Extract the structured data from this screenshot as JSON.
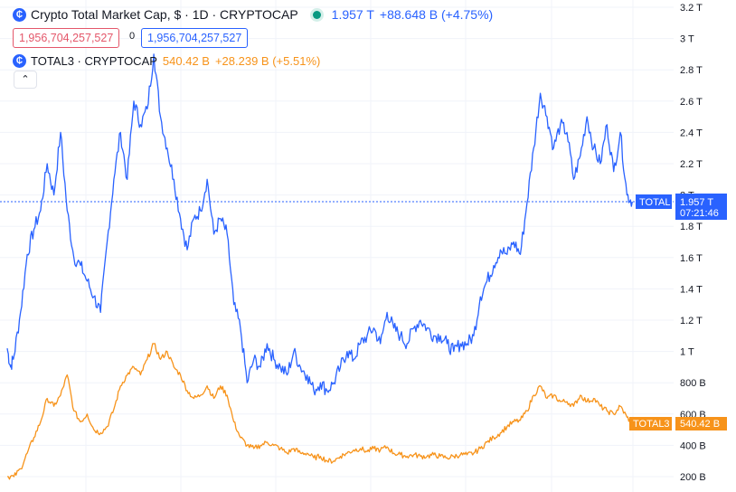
{
  "legend": {
    "main": {
      "logo": "crypto-logo-icon",
      "title": "Crypto Total Market Cap, $ · 1D · CRYPTOCAP",
      "value": "1.957 T",
      "change": "+88.648 B (+4.75%)"
    },
    "secondary": {
      "logo": "crypto-logo-icon",
      "title": "TOTAL3 · CRYPTOCAP",
      "value": "540.42 B",
      "change": "+28.239 B (+5.51%)"
    },
    "sell_value": "1,956,704,257,527",
    "spread": "0",
    "buy_value": "1,956,704,257,527",
    "collapse_icon": "chevron-up-icon"
  },
  "price_tags": {
    "main_label": "TOTAL",
    "main_value": "1.957 T",
    "main_countdown": "07:21:46",
    "secondary_label": "TOTAL3",
    "secondary_value": "540.42 B"
  },
  "colors": {
    "main": "#2962ff",
    "secondary": "#f7931a",
    "grid": "#f0f3fa"
  },
  "chart_data": {
    "type": "line",
    "title": "Crypto Total Market Cap, $ · 1D · CRYPTOCAP",
    "y_axis": {
      "unit": "T",
      "min": 0.1,
      "max": 3.2,
      "ticks": [
        {
          "value": 3.2,
          "label": "3.2 T"
        },
        {
          "value": 3.0,
          "label": "3 T"
        },
        {
          "value": 2.8,
          "label": "2.8 T"
        },
        {
          "value": 2.6,
          "label": "2.6 T"
        },
        {
          "value": 2.4,
          "label": "2.4 T"
        },
        {
          "value": 2.2,
          "label": "2.2 T"
        },
        {
          "value": 2.0,
          "label": "2 T"
        },
        {
          "value": 1.8,
          "label": "1.8 T"
        },
        {
          "value": 1.6,
          "label": "1.6 T"
        },
        {
          "value": 1.4,
          "label": "1.4 T"
        },
        {
          "value": 1.2,
          "label": "1.2 T"
        },
        {
          "value": 1.0,
          "label": "1 T"
        },
        {
          "value": 0.8,
          "label": "800 B"
        },
        {
          "value": 0.6,
          "label": "600 B"
        },
        {
          "value": 0.4,
          "label": "400 B"
        },
        {
          "value": 0.2,
          "label": "200 B"
        }
      ]
    },
    "x_range": [
      0,
      100
    ],
    "current_value": 1.957,
    "series": [
      {
        "name": "TOTAL",
        "color": "#2962ff",
        "points": [
          [
            0,
            1.02
          ],
          [
            0.5,
            0.9
          ],
          [
            1,
            0.97
          ],
          [
            2,
            1.25
          ],
          [
            3,
            1.62
          ],
          [
            4,
            1.78
          ],
          [
            5,
            1.9
          ],
          [
            6,
            2.2
          ],
          [
            7,
            2.0
          ],
          [
            8,
            2.4
          ],
          [
            9,
            1.9
          ],
          [
            10,
            1.6
          ],
          [
            11,
            1.55
          ],
          [
            12,
            1.45
          ],
          [
            13,
            1.35
          ],
          [
            14,
            1.25
          ],
          [
            15,
            1.7
          ],
          [
            16,
            2.1
          ],
          [
            17,
            2.4
          ],
          [
            18,
            2.1
          ],
          [
            19,
            2.6
          ],
          [
            20,
            2.45
          ],
          [
            21,
            2.55
          ],
          [
            22,
            2.9
          ],
          [
            23,
            2.5
          ],
          [
            24,
            2.3
          ],
          [
            25,
            2.1
          ],
          [
            26,
            1.85
          ],
          [
            27,
            1.65
          ],
          [
            28,
            1.85
          ],
          [
            29,
            1.9
          ],
          [
            30,
            2.1
          ],
          [
            31,
            1.75
          ],
          [
            32,
            1.85
          ],
          [
            33,
            1.75
          ],
          [
            34,
            1.3
          ],
          [
            35,
            1.15
          ],
          [
            36,
            0.8
          ],
          [
            37,
            0.95
          ],
          [
            38,
            0.9
          ],
          [
            39,
            1.05
          ],
          [
            40,
            0.95
          ],
          [
            41,
            0.9
          ],
          [
            42,
            0.85
          ],
          [
            43,
            1.0
          ],
          [
            44,
            0.9
          ],
          [
            45,
            0.85
          ],
          [
            46,
            0.75
          ],
          [
            47,
            0.8
          ],
          [
            48,
            0.75
          ],
          [
            49,
            0.8
          ],
          [
            50,
            0.9
          ],
          [
            51,
            1.0
          ],
          [
            52,
            0.95
          ],
          [
            53,
            1.05
          ],
          [
            54,
            1.1
          ],
          [
            55,
            1.15
          ],
          [
            56,
            1.05
          ],
          [
            57,
            1.25
          ],
          [
            58,
            1.15
          ],
          [
            59,
            1.1
          ],
          [
            60,
            1.05
          ],
          [
            61,
            1.15
          ],
          [
            62,
            1.2
          ],
          [
            63,
            1.15
          ],
          [
            64,
            1.1
          ],
          [
            65,
            1.1
          ],
          [
            66,
            1.05
          ],
          [
            67,
            1.0
          ],
          [
            68,
            1.05
          ],
          [
            69,
            1.05
          ],
          [
            70,
            1.1
          ],
          [
            71,
            1.35
          ],
          [
            72,
            1.45
          ],
          [
            73,
            1.55
          ],
          [
            74,
            1.65
          ],
          [
            75,
            1.62
          ],
          [
            76,
            1.7
          ],
          [
            77,
            1.62
          ],
          [
            78,
            1.95
          ],
          [
            79,
            2.3
          ],
          [
            80,
            2.65
          ],
          [
            81,
            2.5
          ],
          [
            82,
            2.3
          ],
          [
            83,
            2.45
          ],
          [
            84,
            2.4
          ],
          [
            85,
            2.1
          ],
          [
            86,
            2.25
          ],
          [
            87,
            2.5
          ],
          [
            88,
            2.3
          ],
          [
            89,
            2.2
          ],
          [
            90,
            2.45
          ],
          [
            91,
            2.15
          ],
          [
            92,
            2.4
          ],
          [
            93,
            2.0
          ],
          [
            93.8,
            1.957
          ]
        ]
      },
      {
        "name": "TOTAL3",
        "color": "#f7931a",
        "points": [
          [
            0,
            0.2
          ],
          [
            1,
            0.2
          ],
          [
            2,
            0.25
          ],
          [
            3,
            0.35
          ],
          [
            4,
            0.45
          ],
          [
            5,
            0.55
          ],
          [
            6,
            0.7
          ],
          [
            7,
            0.65
          ],
          [
            8,
            0.72
          ],
          [
            9,
            0.85
          ],
          [
            10,
            0.62
          ],
          [
            11,
            0.55
          ],
          [
            12,
            0.6
          ],
          [
            13,
            0.5
          ],
          [
            14,
            0.48
          ],
          [
            15,
            0.52
          ],
          [
            16,
            0.63
          ],
          [
            17,
            0.78
          ],
          [
            18,
            0.85
          ],
          [
            19,
            0.9
          ],
          [
            20,
            0.85
          ],
          [
            21,
            0.95
          ],
          [
            22,
            1.05
          ],
          [
            23,
            0.95
          ],
          [
            24,
            1.0
          ],
          [
            25,
            0.9
          ],
          [
            26,
            0.85
          ],
          [
            27,
            0.75
          ],
          [
            28,
            0.7
          ],
          [
            29,
            0.72
          ],
          [
            30,
            0.78
          ],
          [
            31,
            0.7
          ],
          [
            32,
            0.78
          ],
          [
            33,
            0.72
          ],
          [
            34,
            0.55
          ],
          [
            35,
            0.45
          ],
          [
            36,
            0.4
          ],
          [
            37,
            0.38
          ],
          [
            38,
            0.4
          ],
          [
            39,
            0.42
          ],
          [
            40,
            0.4
          ],
          [
            41,
            0.38
          ],
          [
            42,
            0.35
          ],
          [
            43,
            0.38
          ],
          [
            44,
            0.35
          ],
          [
            45,
            0.35
          ],
          [
            46,
            0.32
          ],
          [
            47,
            0.33
          ],
          [
            48,
            0.3
          ],
          [
            49,
            0.3
          ],
          [
            50,
            0.33
          ],
          [
            51,
            0.35
          ],
          [
            52,
            0.37
          ],
          [
            53,
            0.38
          ],
          [
            54,
            0.36
          ],
          [
            55,
            0.38
          ],
          [
            56,
            0.37
          ],
          [
            57,
            0.39
          ],
          [
            58,
            0.35
          ],
          [
            59,
            0.34
          ],
          [
            60,
            0.33
          ],
          [
            61,
            0.34
          ],
          [
            62,
            0.33
          ],
          [
            63,
            0.33
          ],
          [
            64,
            0.34
          ],
          [
            65,
            0.33
          ],
          [
            66,
            0.32
          ],
          [
            67,
            0.33
          ],
          [
            68,
            0.34
          ],
          [
            69,
            0.34
          ],
          [
            70,
            0.35
          ],
          [
            71,
            0.38
          ],
          [
            72,
            0.42
          ],
          [
            73,
            0.45
          ],
          [
            74,
            0.48
          ],
          [
            75,
            0.52
          ],
          [
            76,
            0.55
          ],
          [
            77,
            0.56
          ],
          [
            78,
            0.62
          ],
          [
            79,
            0.72
          ],
          [
            80,
            0.78
          ],
          [
            81,
            0.7
          ],
          [
            82,
            0.72
          ],
          [
            83,
            0.68
          ],
          [
            84,
            0.68
          ],
          [
            85,
            0.65
          ],
          [
            86,
            0.72
          ],
          [
            87,
            0.68
          ],
          [
            88,
            0.7
          ],
          [
            89,
            0.65
          ],
          [
            90,
            0.62
          ],
          [
            91,
            0.6
          ],
          [
            92,
            0.65
          ],
          [
            93,
            0.58
          ],
          [
            93.8,
            0.54
          ]
        ]
      }
    ]
  }
}
